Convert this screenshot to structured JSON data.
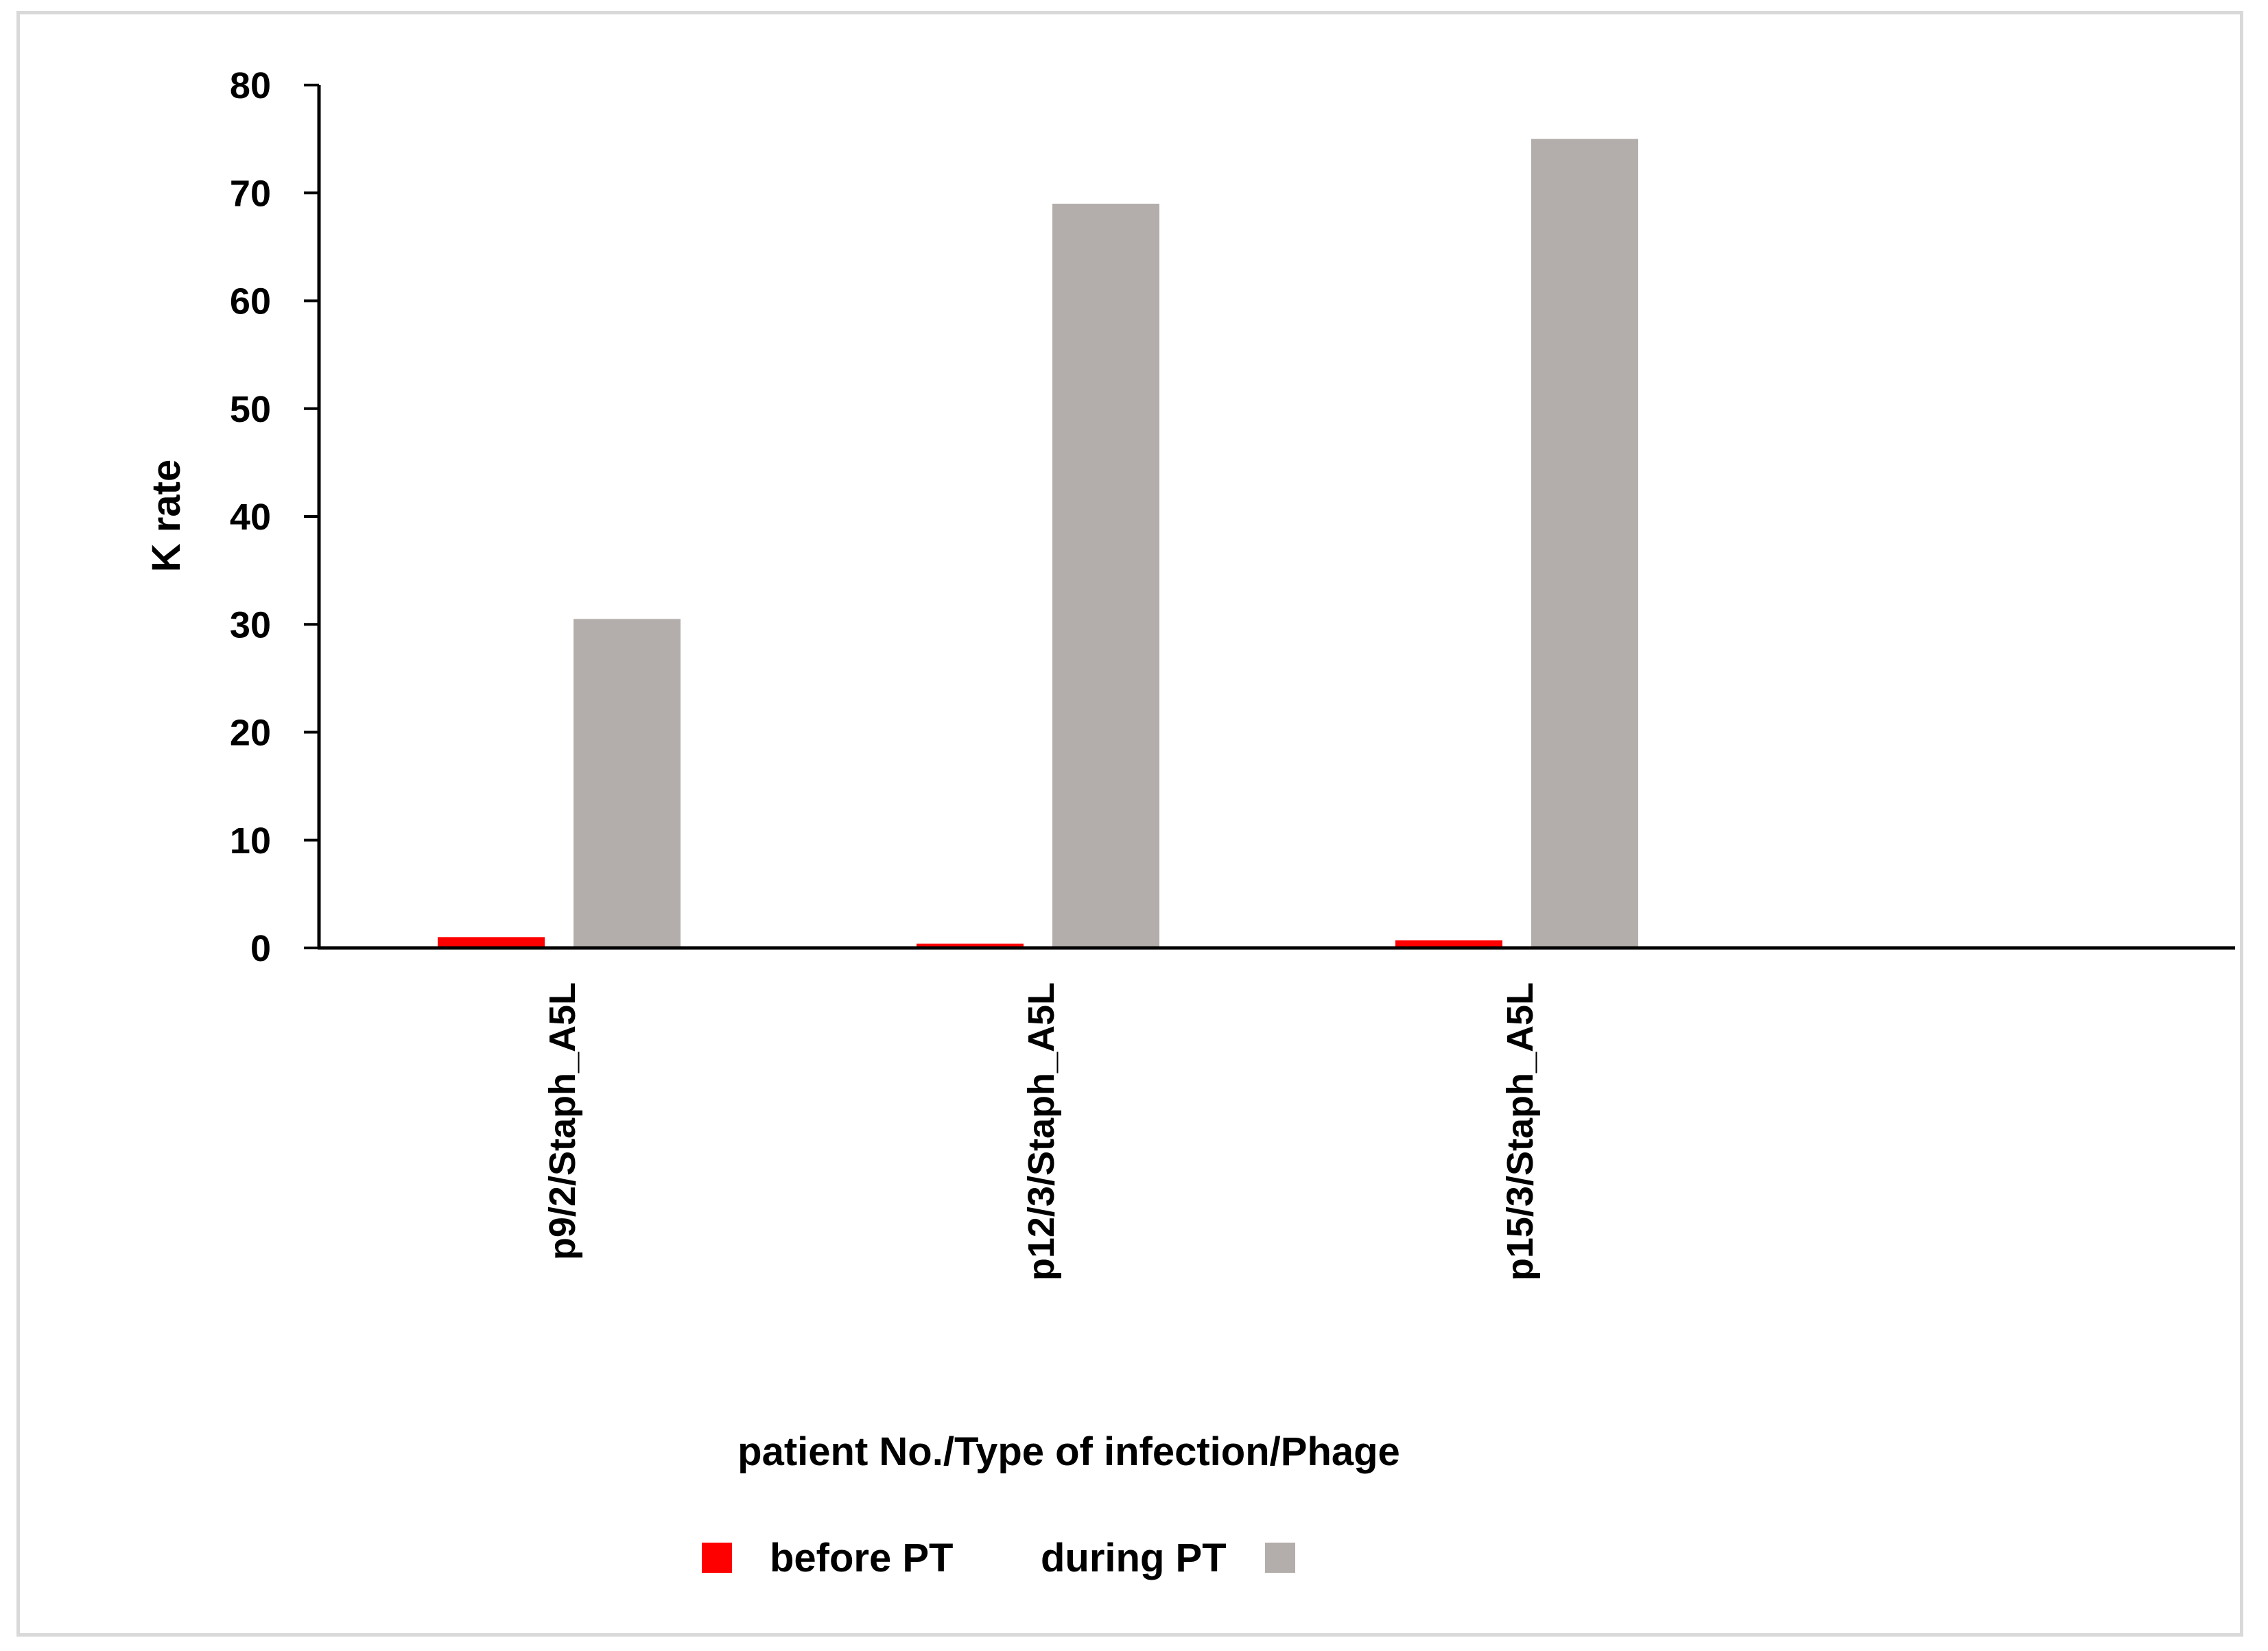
{
  "chart_data": {
    "type": "bar",
    "categories": [
      "p9/2/Staph_A5L",
      "p12/3/Staph_A5L",
      "p15/3/Staph_A5L"
    ],
    "series": [
      {
        "name": "before PT",
        "color": "#ff0000",
        "values": [
          1.0,
          0.4,
          0.7
        ]
      },
      {
        "name": "during PT",
        "color": "#b3aeab",
        "values": [
          30.5,
          69,
          75
        ]
      }
    ],
    "xlabel": "patient No./Type of infection/Phage",
    "ylabel": "K rate",
    "ylim": [
      0,
      80
    ],
    "yticks": [
      0,
      10,
      20,
      30,
      40,
      50,
      60,
      70,
      80
    ],
    "grid": false,
    "legend_position": "bottom-center"
  }
}
